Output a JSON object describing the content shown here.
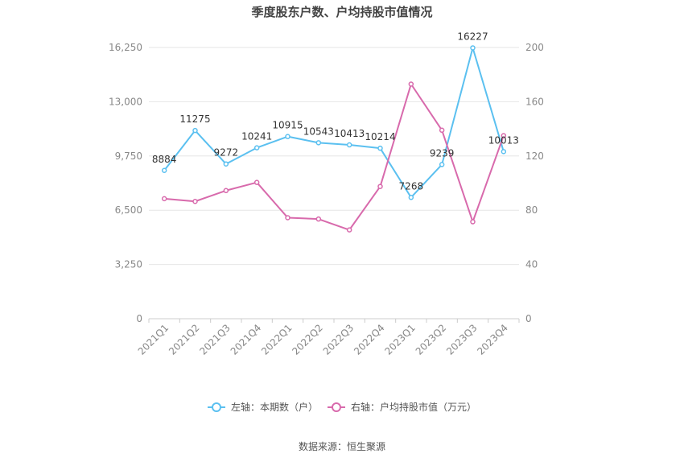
{
  "chart_data": {
    "type": "line",
    "title": "季度股东户数、户均持股市值情况",
    "source": "数据来源：恒生聚源",
    "categories": [
      "2021Q1",
      "2021Q2",
      "2021Q3",
      "2021Q4",
      "2022Q1",
      "2022Q2",
      "2022Q3",
      "2022Q4",
      "2023Q1",
      "2023Q2",
      "2023Q3",
      "2023Q4"
    ],
    "y_left": {
      "min": 0,
      "max": 16250,
      "ticks": [
        0,
        3250,
        6500,
        9750,
        13000,
        16250
      ],
      "tick_labels": [
        "0",
        "3,250",
        "6,500",
        "9,750",
        "13,000",
        "16,250"
      ]
    },
    "y_right": {
      "min": 0,
      "max": 200,
      "ticks": [
        0,
        40,
        80,
        120,
        160,
        200
      ],
      "tick_labels": [
        "0",
        "40",
        "80",
        "120",
        "160",
        "200"
      ]
    },
    "grid": true,
    "legend_position": "bottom",
    "series": [
      {
        "name": "左轴：本期数（户）",
        "axis": "left",
        "color": "#5bc0f0",
        "values": [
          8884,
          11275,
          9272,
          10241,
          10915,
          10543,
          10413,
          10214,
          7268,
          9239,
          16227,
          10013
        ],
        "labels": [
          "8884",
          "11275",
          "9272",
          "10241",
          "10915",
          "10543",
          "10413",
          "10214",
          "7268",
          "9239",
          "16227",
          "10013"
        ]
      },
      {
        "name": "右轴：户均持股市值（万元）",
        "axis": "right",
        "color": "#d86aac",
        "values": [
          88.5,
          86.5,
          94.5,
          100.5,
          74.5,
          73.5,
          65.5,
          97.5,
          173,
          139,
          71.5,
          135
        ]
      }
    ]
  }
}
